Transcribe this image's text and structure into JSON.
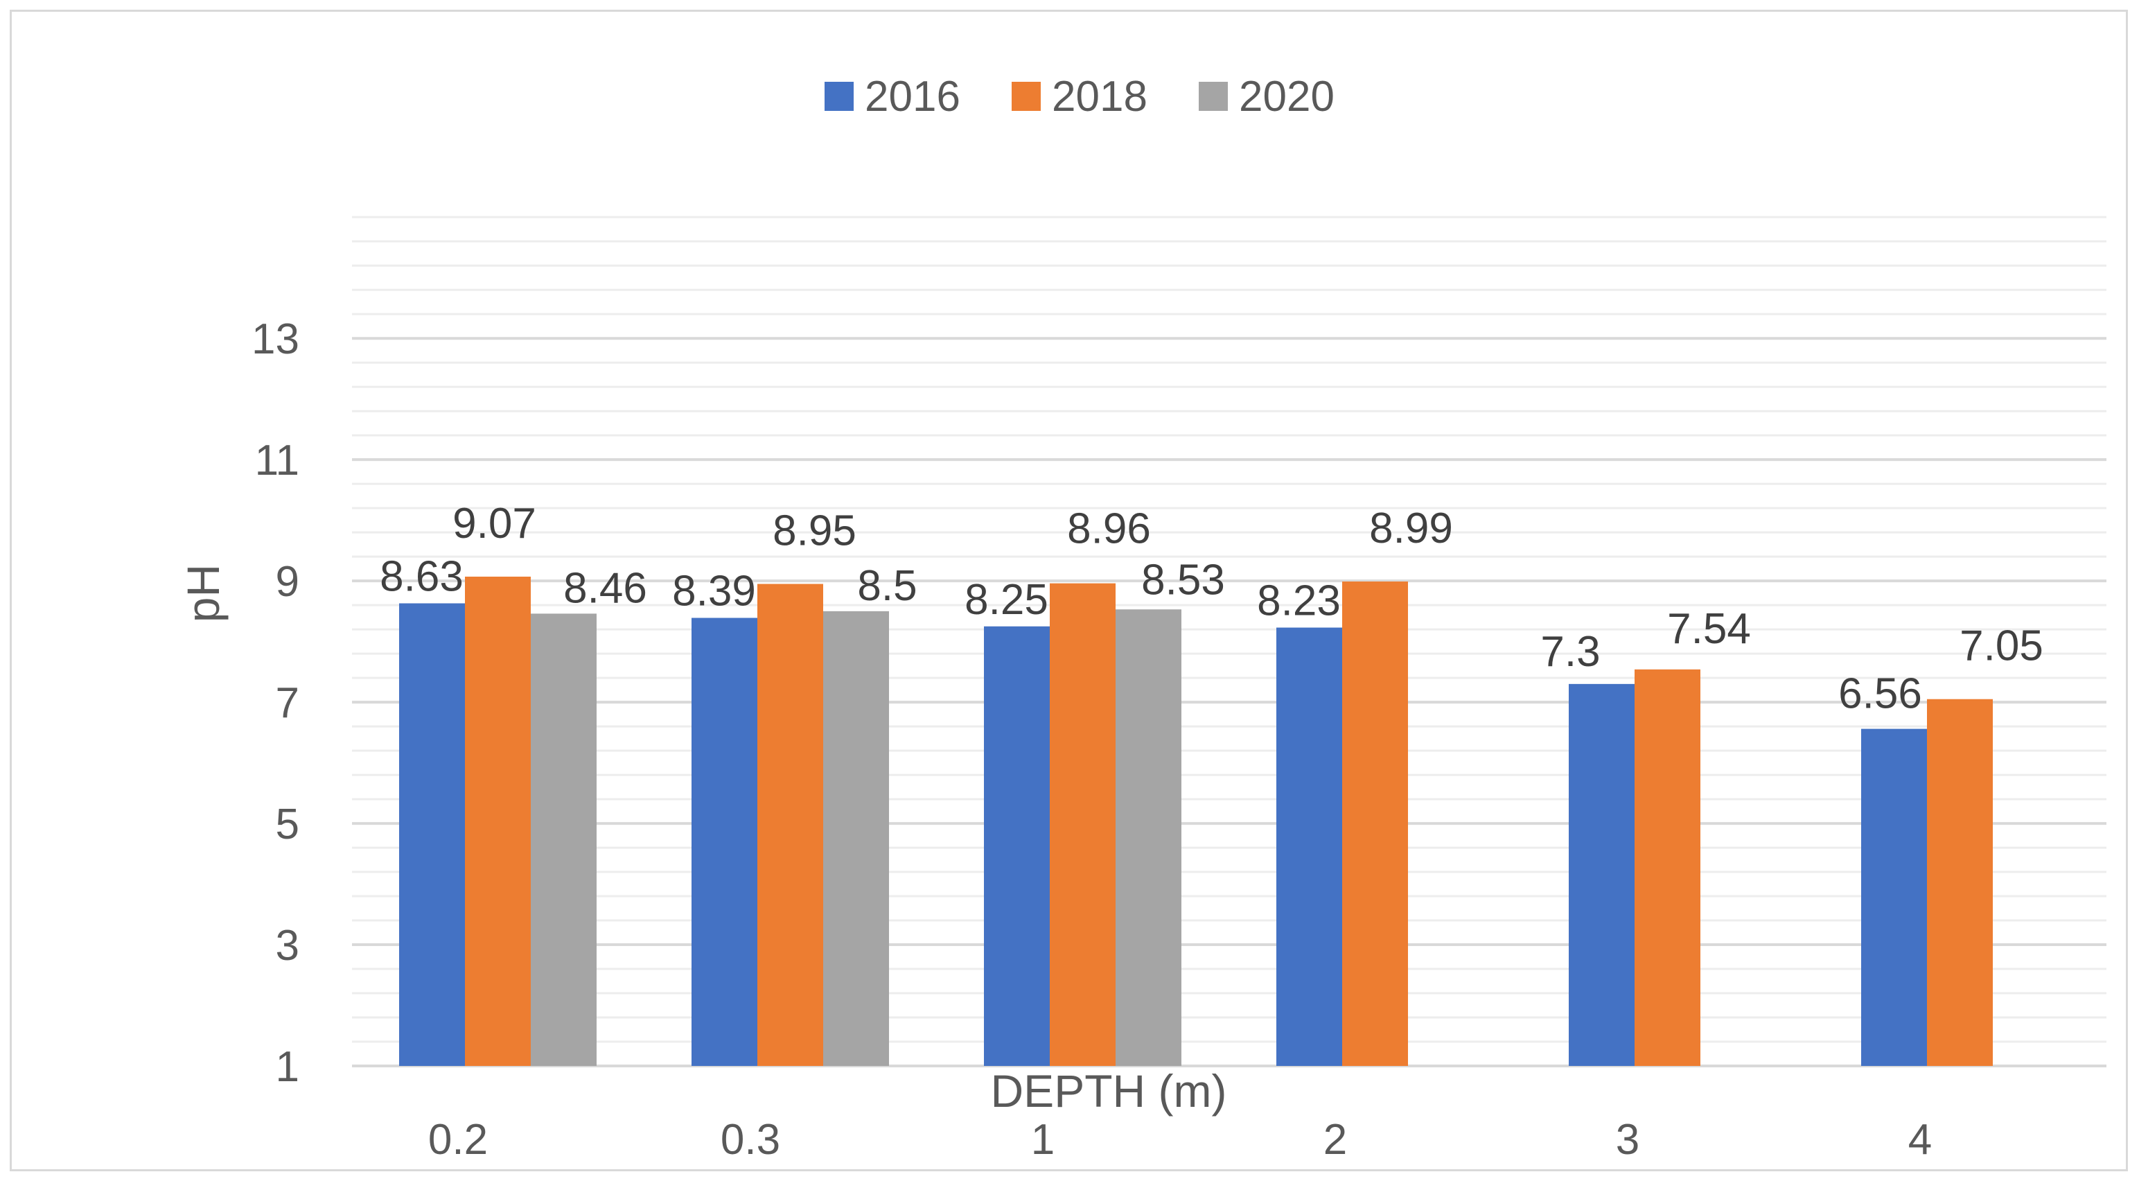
{
  "chart_data": {
    "type": "bar",
    "title": "",
    "xlabel": "DEPTH (m)",
    "ylabel": "pH",
    "categories": [
      "0.2",
      "0.3",
      "1",
      "2",
      "3",
      "4"
    ],
    "series": [
      {
        "name": "2016",
        "color": "#4472C4",
        "values": [
          8.63,
          8.39,
          8.25,
          8.23,
          7.3,
          6.56
        ],
        "labels": [
          "8.63",
          "8.39",
          "8.25",
          "8.23",
          "7.3",
          "6.56"
        ]
      },
      {
        "name": "2018",
        "color": "#ED7D31",
        "values": [
          9.07,
          8.95,
          8.96,
          8.99,
          7.54,
          7.05
        ],
        "labels": [
          "9.07",
          "8.95",
          "8.96",
          "8.99",
          "7.54",
          "7.05"
        ]
      },
      {
        "name": "2020",
        "color": "#A5A5A5",
        "values": [
          8.46,
          8.5,
          8.53,
          null,
          null,
          null
        ],
        "labels": [
          "8.46",
          "8.5",
          "8.53",
          null,
          null,
          null
        ]
      }
    ],
    "ylim": [
      1,
      14.9
    ],
    "yticks": [
      1,
      3,
      5,
      7,
      9,
      11,
      13
    ],
    "ytick_labels": [
      "1",
      "3",
      "5",
      "7",
      "9",
      "11",
      "13"
    ],
    "minor_grid_step": 0.4,
    "grid": true,
    "legend": "top-center"
  }
}
